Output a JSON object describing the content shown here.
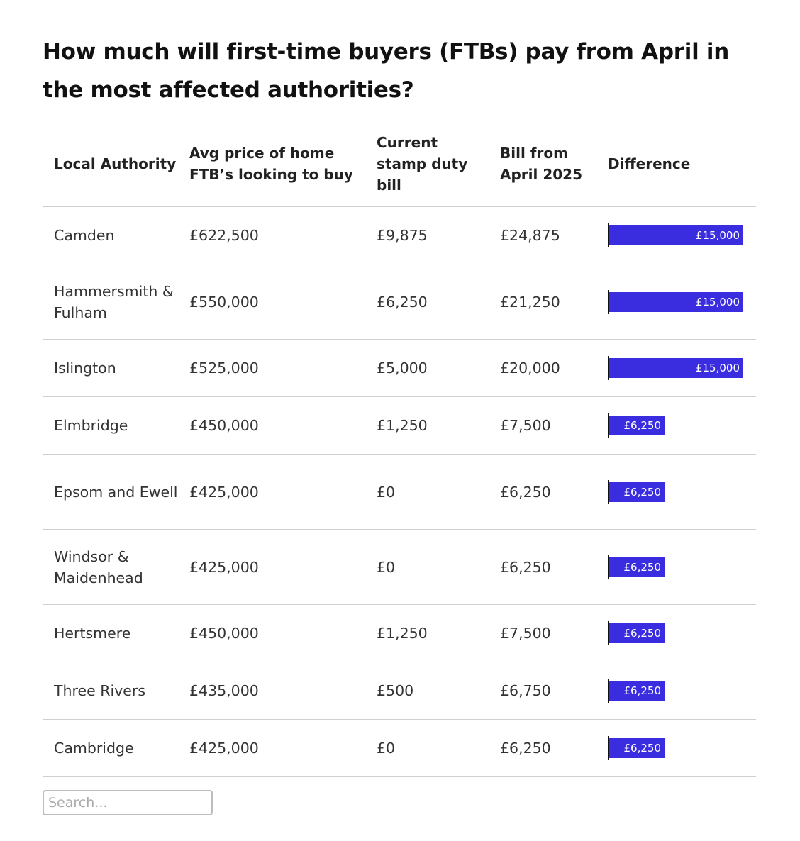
{
  "title": "How much will first-time buyers (FTBs) pay from April in the most affected authorities?",
  "search": {
    "placeholder": "Search..."
  },
  "colors": {
    "bar": "#3a2de0",
    "axis": "#111111"
  },
  "chart_data": {
    "type": "table",
    "columns": [
      "Local Authority",
      "Avg price of home FTB’s looking to buy",
      "Current stamp duty bill",
      "Bill from April 2025",
      "Difference"
    ],
    "bar_column": "Difference",
    "bar_max": 15000,
    "rows": [
      {
        "authority": "Camden",
        "avg_price": "£622,500",
        "current_bill": "£9,875",
        "april_bill": "£24,875",
        "difference_label": "£15,000",
        "difference": 15000
      },
      {
        "authority": "Hammersmith & Fulham",
        "avg_price": "£550,000",
        "current_bill": "£6,250",
        "april_bill": "£21,250",
        "difference_label": "£15,000",
        "difference": 15000
      },
      {
        "authority": "Islington",
        "avg_price": "£525,000",
        "current_bill": "£5,000",
        "april_bill": "£20,000",
        "difference_label": "£15,000",
        "difference": 15000
      },
      {
        "authority": "Elmbridge",
        "avg_price": "£450,000",
        "current_bill": "£1,250",
        "april_bill": "£7,500",
        "difference_label": "£6,250",
        "difference": 6250
      },
      {
        "authority": "Epsom and Ewell",
        "avg_price": "£425,000",
        "current_bill": "£0",
        "april_bill": "£6,250",
        "difference_label": "£6,250",
        "difference": 6250
      },
      {
        "authority": "Windsor & Maidenhead",
        "avg_price": "£425,000",
        "current_bill": "£0",
        "april_bill": "£6,250",
        "difference_label": "£6,250",
        "difference": 6250
      },
      {
        "authority": "Hertsmere",
        "avg_price": "£450,000",
        "current_bill": "£1,250",
        "april_bill": "£7,500",
        "difference_label": "£6,250",
        "difference": 6250
      },
      {
        "authority": "Three Rivers",
        "avg_price": "£435,000",
        "current_bill": "£500",
        "april_bill": "£6,750",
        "difference_label": "£6,250",
        "difference": 6250
      },
      {
        "authority": "Cambridge",
        "avg_price": "£425,000",
        "current_bill": "£0",
        "april_bill": "£6,250",
        "difference_label": "£6,250",
        "difference": 6250
      }
    ]
  }
}
